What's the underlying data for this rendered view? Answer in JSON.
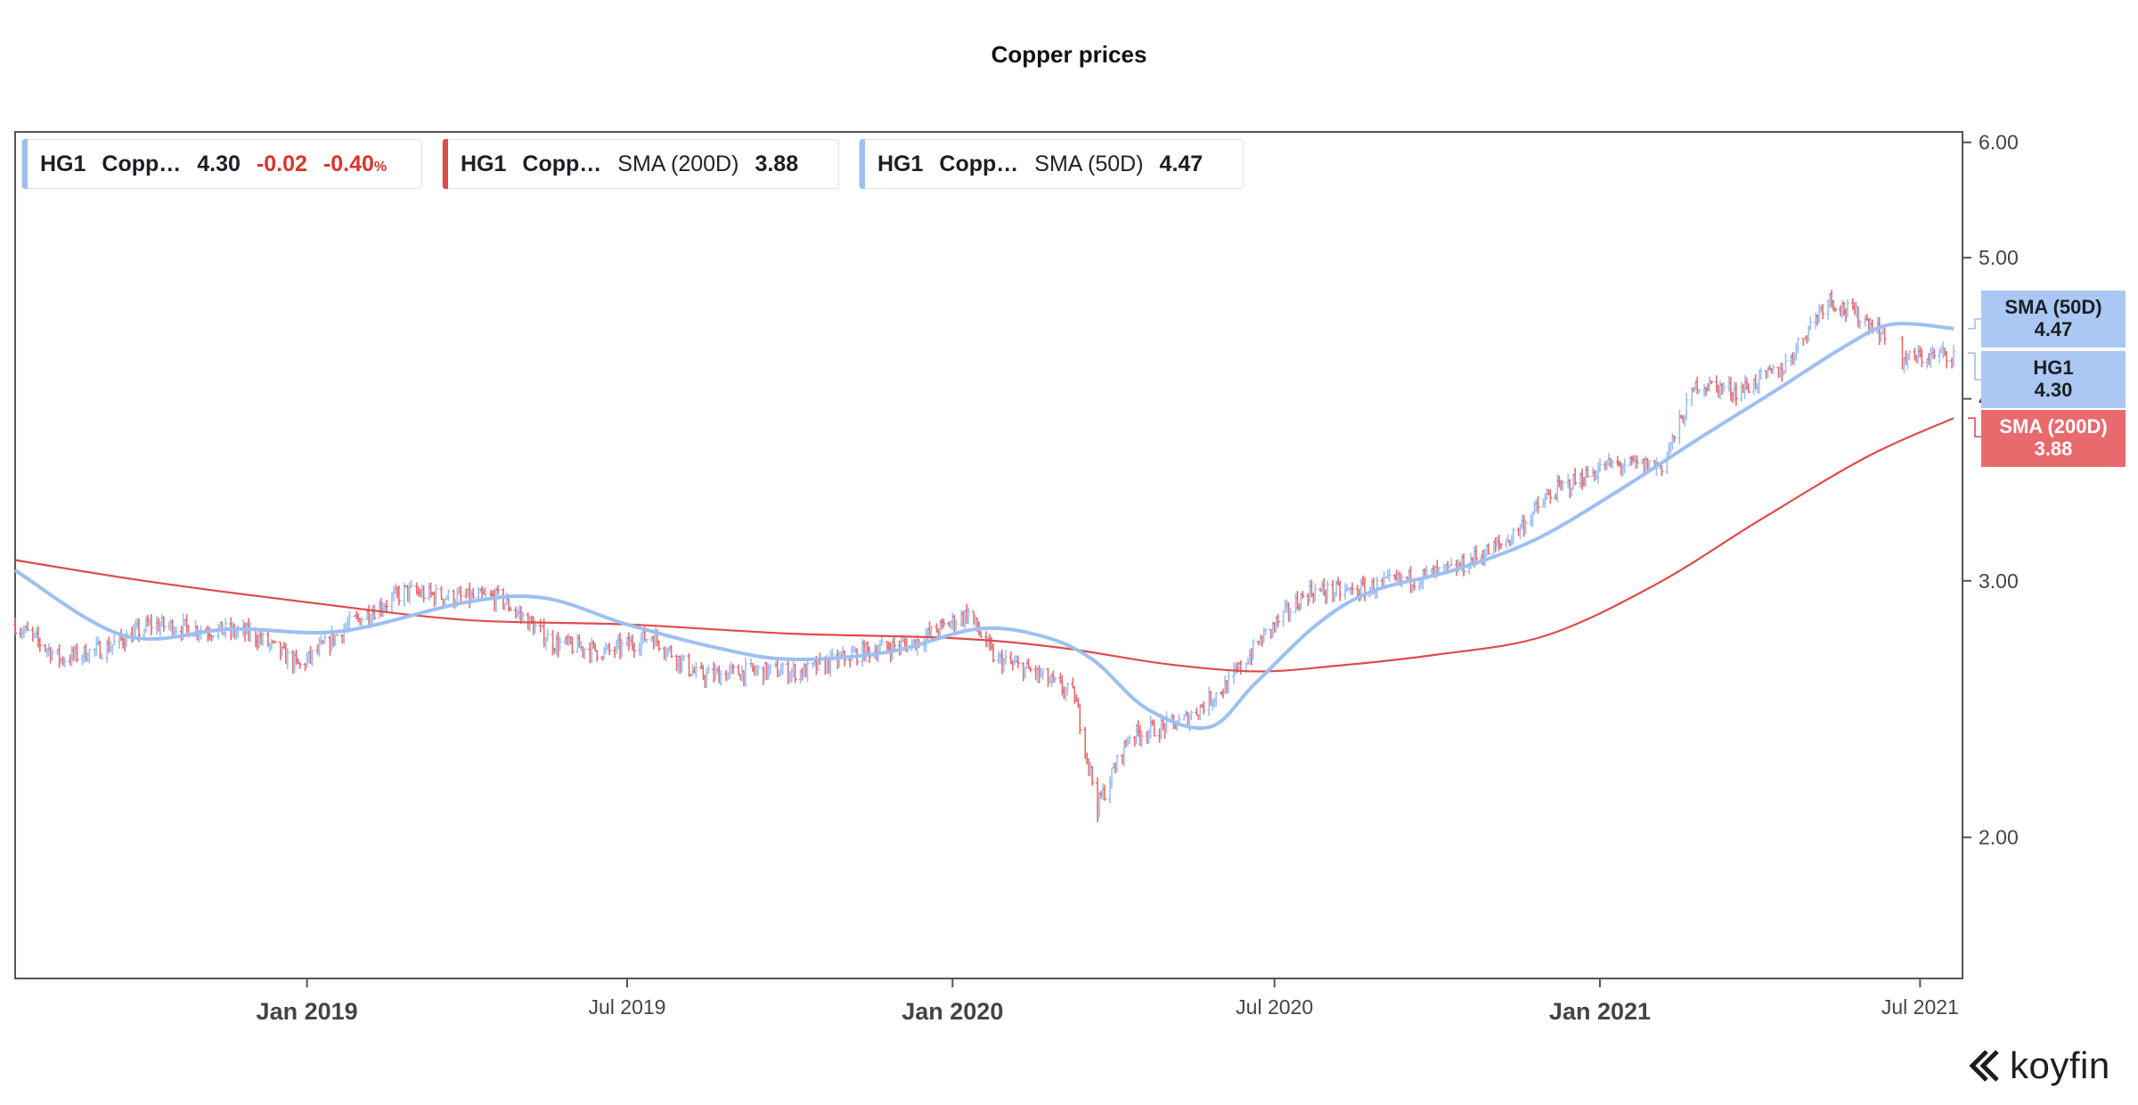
{
  "page": {
    "title": "Copper prices"
  },
  "legend": [
    {
      "symbol": "HG1",
      "name": "Copp…",
      "value": "4.30",
      "change": "-0.02",
      "change_pct": "-0.40",
      "pct_sign": "%",
      "color": "#e86a6c"
    },
    {
      "symbol": "HG1",
      "name": "Copp…",
      "indicator": "SMA (200D)",
      "value": "3.88",
      "color": "#e04b4b"
    },
    {
      "symbol": "HG1",
      "name": "Copp…",
      "indicator": "SMA (50D)",
      "value": "4.47",
      "color": "#9dbff2"
    }
  ],
  "price_tags": [
    {
      "label": "SMA (50D)",
      "value": "4.47"
    },
    {
      "label": "HG1",
      "value": "4.30"
    },
    {
      "label": "SMA (200D)",
      "value": "3.88"
    }
  ],
  "brand": {
    "name": "koyfin"
  },
  "chart_data": {
    "type": "line",
    "title": "Copper prices",
    "y_scale": "log",
    "ylim": [
      1.6,
      6.1
    ],
    "y_ticks": [
      "2.00",
      "3.00",
      "4.00",
      "5.00",
      "6.00"
    ],
    "y_tick_values": [
      2.0,
      3.0,
      4.0,
      5.0,
      6.0
    ],
    "x_ticks": [
      {
        "label": "Jan 2019",
        "date": "2019-01-01",
        "major": true
      },
      {
        "label": "Jul 2019",
        "date": "2019-07-01",
        "major": false
      },
      {
        "label": "Jan 2020",
        "date": "2020-01-01",
        "major": true
      },
      {
        "label": "Jul 2020",
        "date": "2020-07-01",
        "major": false
      },
      {
        "label": "Jan 2021",
        "date": "2021-01-01",
        "major": true
      },
      {
        "label": "Jul 2021",
        "date": "2021-07-01",
        "major": false
      }
    ],
    "xlim": [
      "2018-07-20",
      "2021-07-25"
    ],
    "colors": {
      "up": "#9dbff2",
      "down": "#e86a6c",
      "sma200": "#e04b4b",
      "sma50": "#9dbff2"
    },
    "series": [
      {
        "name": "HG1 Copp…",
        "type": "ohlc",
        "x": [
          "2018-07-20",
          "2018-08-15",
          "2018-09-10",
          "2018-10-05",
          "2018-11-01",
          "2018-12-01",
          "2018-12-28",
          "2019-01-25",
          "2019-02-25",
          "2019-03-25",
          "2019-04-20",
          "2019-05-20",
          "2019-06-20",
          "2019-07-15",
          "2019-08-10",
          "2019-09-10",
          "2019-10-10",
          "2019-11-10",
          "2019-12-10",
          "2020-01-10",
          "2020-01-25",
          "2020-02-15",
          "2020-03-10",
          "2020-03-23",
          "2020-04-10",
          "2020-05-10",
          "2020-06-05",
          "2020-06-25",
          "2020-07-20",
          "2020-08-15",
          "2020-09-10",
          "2020-10-10",
          "2020-11-10",
          "2020-12-05",
          "2021-01-05",
          "2021-02-05",
          "2021-02-25",
          "2021-03-20",
          "2021-04-15",
          "2021-05-10",
          "2021-05-20",
          "2021-06-05",
          "2021-06-20",
          "2021-07-20"
        ],
        "values": [
          2.8,
          2.65,
          2.7,
          2.8,
          2.78,
          2.76,
          2.62,
          2.8,
          2.95,
          2.92,
          2.92,
          2.72,
          2.68,
          2.75,
          2.58,
          2.6,
          2.6,
          2.68,
          2.72,
          2.85,
          2.65,
          2.6,
          2.5,
          2.1,
          2.35,
          2.4,
          2.55,
          2.75,
          2.95,
          2.95,
          3.0,
          3.05,
          3.2,
          3.45,
          3.6,
          3.6,
          4.1,
          4.05,
          4.2,
          4.7,
          4.6,
          4.5,
          4.25,
          4.3
        ]
      },
      {
        "name": "SMA (200D)",
        "type": "line",
        "x": [
          "2018-07-20",
          "2018-10-01",
          "2019-01-01",
          "2019-04-01",
          "2019-07-01",
          "2019-10-01",
          "2020-01-01",
          "2020-03-01",
          "2020-05-01",
          "2020-06-20",
          "2020-08-01",
          "2020-10-01",
          "2020-12-01",
          "2021-02-01",
          "2021-04-01",
          "2021-06-01",
          "2021-07-20"
        ],
        "values": [
          3.1,
          3.0,
          2.9,
          2.82,
          2.8,
          2.76,
          2.74,
          2.7,
          2.63,
          2.6,
          2.62,
          2.67,
          2.75,
          2.98,
          3.3,
          3.65,
          3.88
        ]
      },
      {
        "name": "SMA (50D)",
        "type": "line",
        "x": [
          "2018-07-20",
          "2018-09-20",
          "2018-11-20",
          "2019-01-20",
          "2019-04-01",
          "2019-05-15",
          "2019-07-01",
          "2019-08-20",
          "2019-10-01",
          "2019-11-25",
          "2020-01-15",
          "2020-02-20",
          "2020-03-20",
          "2020-04-20",
          "2020-05-25",
          "2020-06-20",
          "2020-07-25",
          "2020-08-25",
          "2020-10-10",
          "2020-11-25",
          "2021-01-10",
          "2021-02-25",
          "2021-04-10",
          "2021-05-20",
          "2021-06-15",
          "2021-07-20"
        ],
        "values": [
          3.05,
          2.75,
          2.78,
          2.77,
          2.9,
          2.92,
          2.8,
          2.7,
          2.65,
          2.68,
          2.78,
          2.75,
          2.65,
          2.45,
          2.38,
          2.55,
          2.8,
          2.95,
          3.05,
          3.2,
          3.45,
          3.75,
          4.05,
          4.35,
          4.5,
          4.47
        ]
      }
    ]
  }
}
